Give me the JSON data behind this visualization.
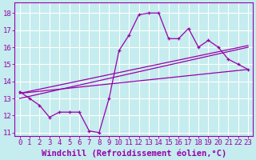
{
  "title": "",
  "xlabel": "Windchill (Refroidissement éolien,°C)",
  "ylabel": "",
  "xlim": [
    -0.5,
    23.5
  ],
  "ylim": [
    10.8,
    18.6
  ],
  "yticks": [
    11,
    12,
    13,
    14,
    15,
    16,
    17,
    18
  ],
  "xticks": [
    0,
    1,
    2,
    3,
    4,
    5,
    6,
    7,
    8,
    9,
    10,
    11,
    12,
    13,
    14,
    15,
    16,
    17,
    18,
    19,
    20,
    21,
    22,
    23
  ],
  "background_color": "#c5ecee",
  "grid_color": "#ffffff",
  "line_color": "#9900aa",
  "main_y": [
    13.4,
    13.0,
    12.6,
    11.9,
    12.2,
    12.2,
    12.2,
    11.1,
    11.0,
    13.0,
    15.8,
    16.7,
    17.9,
    18.0,
    18.0,
    16.5,
    16.5,
    17.1,
    16.0,
    16.4,
    16.0,
    15.3,
    15.0,
    14.7
  ],
  "trend1_x": [
    0,
    23
  ],
  "trend1_y": [
    13.3,
    14.7
  ],
  "trend2_x": [
    0,
    23
  ],
  "trend2_y": [
    13.0,
    16.0
  ],
  "trend3_x": [
    0,
    23
  ],
  "trend3_y": [
    13.3,
    16.1
  ],
  "font_family": "monospace",
  "tick_fontsize": 6.5,
  "label_fontsize": 7.5
}
